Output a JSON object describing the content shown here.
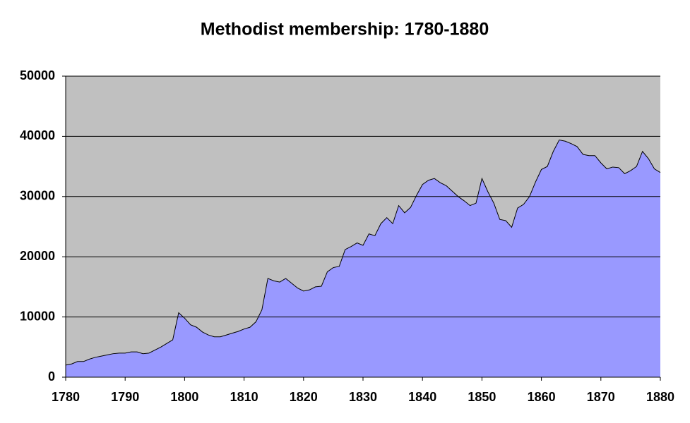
{
  "chart_data": {
    "type": "area",
    "title": "Methodist membership: 1780-1880",
    "x": [
      1780,
      1781,
      1782,
      1783,
      1784,
      1785,
      1786,
      1787,
      1788,
      1789,
      1790,
      1791,
      1792,
      1793,
      1794,
      1795,
      1796,
      1797,
      1798,
      1799,
      1800,
      1801,
      1802,
      1803,
      1804,
      1805,
      1806,
      1807,
      1808,
      1809,
      1810,
      1811,
      1812,
      1813,
      1814,
      1815,
      1816,
      1817,
      1818,
      1819,
      1820,
      1821,
      1822,
      1823,
      1824,
      1825,
      1826,
      1827,
      1828,
      1829,
      1830,
      1831,
      1832,
      1833,
      1834,
      1835,
      1836,
      1837,
      1838,
      1839,
      1840,
      1841,
      1842,
      1843,
      1844,
      1845,
      1846,
      1847,
      1848,
      1849,
      1850,
      1851,
      1852,
      1853,
      1854,
      1855,
      1856,
      1857,
      1858,
      1859,
      1860,
      1861,
      1862,
      1863,
      1864,
      1865,
      1866,
      1867,
      1868,
      1869,
      1870,
      1871,
      1872,
      1873,
      1874,
      1875,
      1876,
      1877,
      1878,
      1879,
      1880
    ],
    "values": [
      2000,
      2200,
      2600,
      2600,
      3000,
      3300,
      3500,
      3700,
      3900,
      4000,
      4000,
      4200,
      4200,
      3900,
      4000,
      4500,
      5000,
      5600,
      6200,
      10700,
      9800,
      8700,
      8300,
      7500,
      7000,
      6700,
      6700,
      7000,
      7300,
      7600,
      8000,
      8300,
      9200,
      11200,
      16400,
      16000,
      15800,
      16400,
      15600,
      14800,
      14300,
      14500,
      15000,
      15100,
      17500,
      18200,
      18400,
      21200,
      21700,
      22300,
      21900,
      23800,
      23500,
      25500,
      26500,
      25500,
      28500,
      27300,
      28200,
      30200,
      32000,
      32700,
      33000,
      32300,
      31800,
      30900,
      30000,
      29300,
      28500,
      28900,
      33000,
      30800,
      28900,
      26200,
      26000,
      24900,
      28100,
      28700,
      30000,
      32400,
      34500,
      35000,
      37500,
      39400,
      39200,
      38800,
      38300,
      37000,
      36800,
      36800,
      35600,
      34600,
      34900,
      34800,
      33800,
      34300,
      35000,
      37500,
      36300,
      34600,
      34000
    ],
    "color": "#9999ff",
    "plot_background": "#c0c0c0",
    "xlim": [
      1780,
      1880
    ],
    "xticks": [
      1780,
      1790,
      1800,
      1810,
      1820,
      1830,
      1840,
      1850,
      1860,
      1870,
      1880
    ],
    "ylim": [
      0,
      50000
    ],
    "yticks": [
      0,
      10000,
      20000,
      30000,
      40000,
      50000
    ],
    "grid": true
  }
}
